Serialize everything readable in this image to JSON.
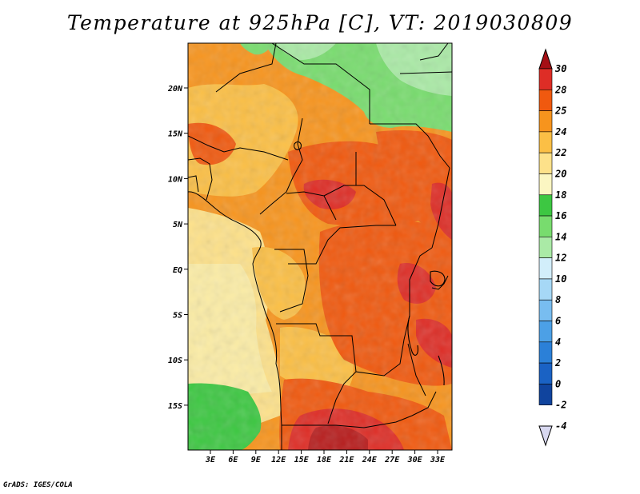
{
  "title": "Temperature at 925hPa [C], VT: 2019030809",
  "footer": "GrADS: IGES/COLA",
  "map": {
    "region": "Central Africa",
    "lon_labels": [
      "3E",
      "6E",
      "9E",
      "12E",
      "15E",
      "18E",
      "21E",
      "24E",
      "27E",
      "30E",
      "33E"
    ],
    "lat_labels": [
      "20N",
      "15N",
      "10N",
      "5N",
      "EQ",
      "5S",
      "10S",
      "15S"
    ]
  },
  "colorbar": {
    "labels": [
      "30",
      "28",
      "25",
      "24",
      "22",
      "20",
      "18",
      "16",
      "14",
      "12",
      "10",
      "8",
      "6",
      "4",
      "2",
      "0",
      "-2",
      "-4"
    ],
    "colors": [
      "#a50f15",
      "#de2d26",
      "#f0590f",
      "#f7941d",
      "#fbbf45",
      "#fde18a",
      "#fbf6c2",
      "#3dc742",
      "#78dc6e",
      "#aaeaa6",
      "#d2eefa",
      "#a6d8f6",
      "#78bdf0",
      "#4ca0e6",
      "#2b80d8",
      "#1a62c4",
      "#10449e",
      "#090f6e"
    ]
  },
  "chart_data": {
    "type": "heatmap",
    "title": "Temperature at 925hPa [C], VT: 2019030809",
    "variable": "Temperature at 925hPa",
    "units": "C",
    "valid_time": "2019030809",
    "lon_ticks": [
      "3E",
      "6E",
      "9E",
      "12E",
      "15E",
      "18E",
      "21E",
      "24E",
      "27E",
      "30E",
      "33E"
    ],
    "lat_ticks": [
      "20N",
      "15N",
      "10N",
      "5N",
      "EQ",
      "5S",
      "10S",
      "15S"
    ],
    "color_levels": [
      -4,
      -2,
      0,
      2,
      4,
      6,
      8,
      10,
      12,
      14,
      16,
      18,
      20,
      22,
      24,
      25,
      28,
      30
    ]
  }
}
